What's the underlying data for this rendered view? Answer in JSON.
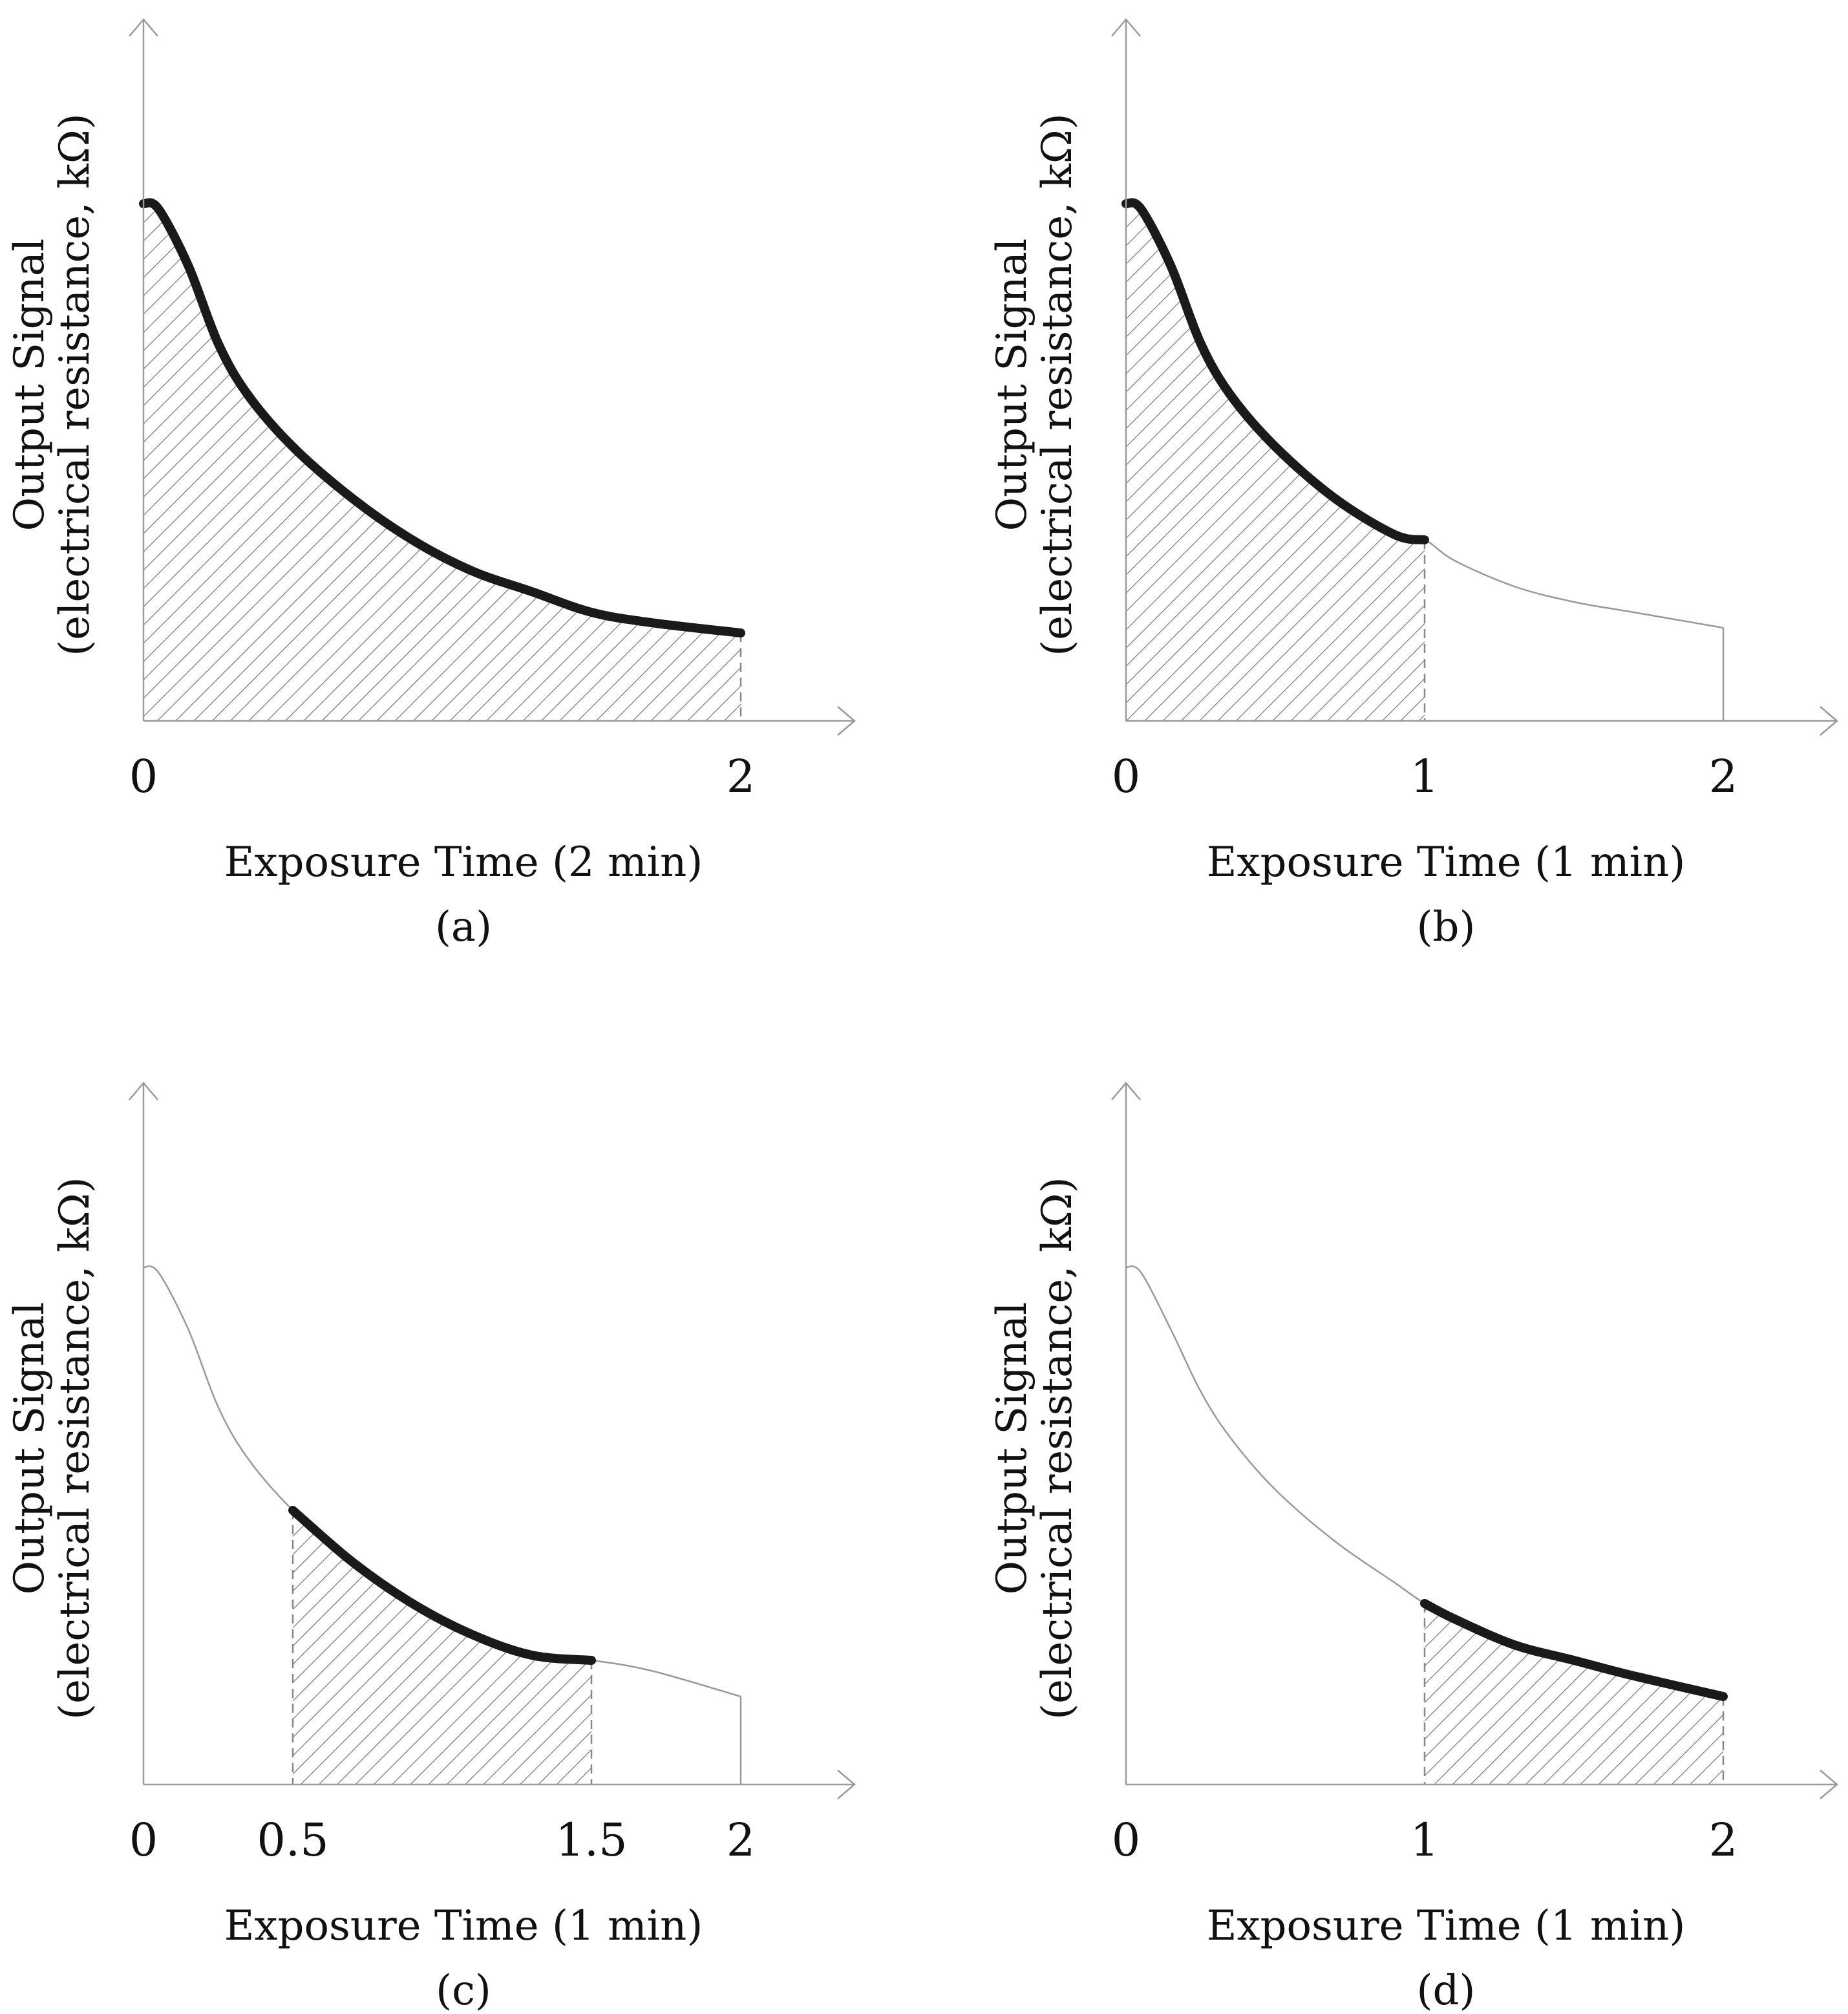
{
  "chart_data": [
    {
      "type": "area",
      "panel_label": "(a)",
      "xlabel": "Exposure Time (2 min)",
      "ylabel_line1": "Output Signal",
      "ylabel_line2": "(electrical resistance, kΩ)",
      "xticks": [
        "0",
        "2"
      ],
      "tick_values": [
        0,
        2
      ],
      "xlim": [
        0,
        2.4
      ],
      "ylim": [
        0,
        1.15
      ],
      "curve": {
        "x": [
          0,
          0.05,
          0.15,
          0.25,
          0.35,
          0.5,
          0.7,
          0.9,
          1.1,
          1.3,
          1.5,
          1.7,
          2.0
        ],
        "y": [
          1.0,
          0.99,
          0.88,
          0.73,
          0.63,
          0.53,
          0.43,
          0.35,
          0.29,
          0.25,
          0.21,
          0.19,
          0.17
        ]
      },
      "highlight_range": [
        0,
        2
      ]
    },
    {
      "type": "area",
      "panel_label": "(b)",
      "xlabel": "Exposure Time (1 min)",
      "ylabel_line1": "Output Signal",
      "ylabel_line2": "(electrical resistance, kΩ)",
      "xticks": [
        "0",
        "1",
        "2"
      ],
      "tick_values": [
        0,
        1,
        2
      ],
      "xlim": [
        0,
        2.4
      ],
      "ylim": [
        0,
        1.15
      ],
      "curve": {
        "x": [
          0,
          0.05,
          0.15,
          0.25,
          0.35,
          0.5,
          0.7,
          0.9,
          1.0,
          1.1,
          1.3,
          1.5,
          1.7,
          2.0
        ],
        "y": [
          1.0,
          0.99,
          0.88,
          0.73,
          0.63,
          0.53,
          0.43,
          0.36,
          0.35,
          0.31,
          0.26,
          0.23,
          0.21,
          0.18
        ]
      },
      "highlight_range": [
        0,
        1
      ]
    },
    {
      "type": "area",
      "panel_label": "(c)",
      "xlabel": "Exposure Time (1 min)",
      "ylabel_line1": "Output Signal",
      "ylabel_line2": "(electrical resistance, kΩ)",
      "xticks": [
        "0",
        "0.5",
        "1.5",
        "2"
      ],
      "tick_values": [
        0,
        0.5,
        1.5,
        2
      ],
      "xlim": [
        0,
        2.4
      ],
      "ylim": [
        0,
        1.15
      ],
      "curve": {
        "x": [
          0,
          0.05,
          0.15,
          0.25,
          0.35,
          0.5,
          0.7,
          0.9,
          1.1,
          1.3,
          1.5,
          1.7,
          2.0
        ],
        "y": [
          1.0,
          0.99,
          0.88,
          0.73,
          0.63,
          0.53,
          0.43,
          0.35,
          0.29,
          0.25,
          0.24,
          0.22,
          0.17
        ]
      },
      "highlight_range": [
        0.5,
        1.5
      ]
    },
    {
      "type": "area",
      "panel_label": "(d)",
      "xlabel": "Exposure Time (1 min)",
      "ylabel_line1": "Output Signal",
      "ylabel_line2": "(electrical resistance, kΩ)",
      "xticks": [
        "0",
        "1",
        "2"
      ],
      "tick_values": [
        0,
        1,
        2
      ],
      "xlim": [
        0,
        2.4
      ],
      "ylim": [
        0,
        1.15
      ],
      "curve": {
        "x": [
          0,
          0.05,
          0.15,
          0.25,
          0.35,
          0.5,
          0.7,
          0.9,
          1.0,
          1.1,
          1.3,
          1.5,
          1.7,
          2.0
        ],
        "y": [
          1.0,
          0.99,
          0.88,
          0.76,
          0.67,
          0.57,
          0.47,
          0.39,
          0.35,
          0.32,
          0.27,
          0.24,
          0.21,
          0.17
        ]
      },
      "highlight_range": [
        1,
        2
      ]
    }
  ]
}
